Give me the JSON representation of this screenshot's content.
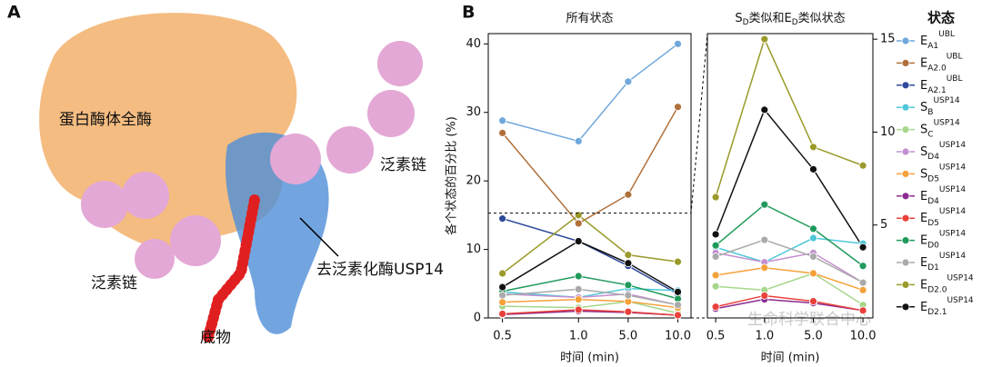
{
  "panel_a": {
    "label": "A",
    "annotations": [
      "蛋白酶体全酶",
      "泛素链",
      "去泛素化酶USP14",
      "泛素链",
      "底物"
    ]
  },
  "watermark": "生命科学联合中心",
  "chart_data": [
    {
      "type": "line",
      "panel_label": "B",
      "title": [
        {
          "text": "所有状态"
        }
      ],
      "xlabel": "时间 (min)",
      "ylabel": "各个状态的百分比 (%)",
      "categories": [
        "0.5",
        "1.0",
        "5.0",
        "10.0"
      ],
      "ylim": [
        0,
        41.5
      ],
      "yticks": [
        0,
        10,
        20,
        30,
        40
      ],
      "legend_title": "状态",
      "series": [
        {
          "name": "E",
          "sub": "A1",
          "sup": "UBL",
          "color": "#6fa8dc",
          "values": [
            28.8,
            25.8,
            34.5,
            40
          ]
        },
        {
          "name": "E",
          "sub": "A2.0",
          "sup": "UBL",
          "color": "#b0703a",
          "values": [
            27,
            13.8,
            18,
            30.8
          ]
        },
        {
          "name": "E",
          "sub": "A2.1",
          "sup": "UBL",
          "color": "#2f4a9a",
          "values": [
            14.5,
            11.2,
            7.6,
            3.5
          ]
        },
        {
          "name": "S",
          "sub": "B",
          "sup": "USP14",
          "color": "#4dc8d8",
          "values": [
            3.8,
            3.0,
            4.3,
            4.0
          ]
        },
        {
          "name": "S",
          "sub": "C",
          "sup": "USP14",
          "color": "#a6d68a",
          "values": [
            1.7,
            1.5,
            2.4,
            0.7
          ]
        },
        {
          "name": "S",
          "sub": "D4",
          "sup": "USP14",
          "color": "#c38fd0",
          "values": [
            3.5,
            3.0,
            3.5,
            1.9
          ]
        },
        {
          "name": "S",
          "sub": "D5",
          "sup": "USP14",
          "color": "#f5a13a",
          "values": [
            2.3,
            2.7,
            2.4,
            1.5
          ]
        },
        {
          "name": "E",
          "sub": "D4",
          "sup": "USP14",
          "color": "#8b2a8f",
          "values": [
            0.5,
            1.0,
            0.8,
            0.4
          ]
        },
        {
          "name": "E",
          "sub": "D5",
          "sup": "USP14",
          "color": "#e8403a",
          "values": [
            0.6,
            1.2,
            0.9,
            0.4
          ]
        },
        {
          "name": "E",
          "sub": "D0",
          "sup": "USP14",
          "color": "#1f9a5a",
          "values": [
            3.9,
            6.1,
            4.8,
            2.8
          ]
        },
        {
          "name": "E",
          "sub": "D1",
          "sup": "USP14",
          "color": "#aaaaaa",
          "values": [
            3.3,
            4.2,
            3.3,
            1.9
          ]
        },
        {
          "name": "E",
          "sub": "D2.0",
          "sup": "USP14",
          "color": "#9a9a2a",
          "values": [
            6.5,
            15.0,
            9.2,
            8.2
          ]
        },
        {
          "name": "E",
          "sub": "D2.1",
          "sup": "USP14",
          "color": "#111111",
          "values": [
            4.5,
            11.2,
            8.0,
            3.8
          ]
        }
      ]
    },
    {
      "type": "line",
      "title": [
        {
          "text": "S"
        },
        {
          "text": "D",
          "sub": true
        },
        {
          "text": "类似和E"
        },
        {
          "text": "D",
          "sub": true
        },
        {
          "text": "类似状态"
        }
      ],
      "xlabel": "时间 (min)",
      "categories": [
        "0.5",
        "1.0",
        "5.0",
        "10.0"
      ],
      "ylim": [
        0,
        15.3
      ],
      "yticks": [
        5,
        10,
        15
      ],
      "series": [
        {
          "color": "#4dc8d8",
          "values": [
            3.8,
            3.0,
            4.3,
            4.0
          ]
        },
        {
          "color": "#a6d68a",
          "values": [
            1.7,
            1.5,
            2.4,
            0.7
          ]
        },
        {
          "color": "#c38fd0",
          "values": [
            3.5,
            3.0,
            3.5,
            1.9
          ]
        },
        {
          "color": "#f5a13a",
          "values": [
            2.3,
            2.7,
            2.4,
            1.5
          ]
        },
        {
          "color": "#8b2a8f",
          "values": [
            0.5,
            1.0,
            0.8,
            0.4
          ]
        },
        {
          "color": "#e8403a",
          "values": [
            0.6,
            1.2,
            0.9,
            0.4
          ]
        },
        {
          "color": "#1f9a5a",
          "values": [
            3.9,
            6.1,
            4.8,
            2.8
          ]
        },
        {
          "color": "#aaaaaa",
          "values": [
            3.3,
            4.2,
            3.3,
            1.9
          ]
        },
        {
          "color": "#9a9a2a",
          "values": [
            6.5,
            15.0,
            9.2,
            8.2
          ]
        },
        {
          "color": "#111111",
          "values": [
            4.5,
            11.2,
            8.0,
            3.8
          ]
        }
      ]
    }
  ]
}
